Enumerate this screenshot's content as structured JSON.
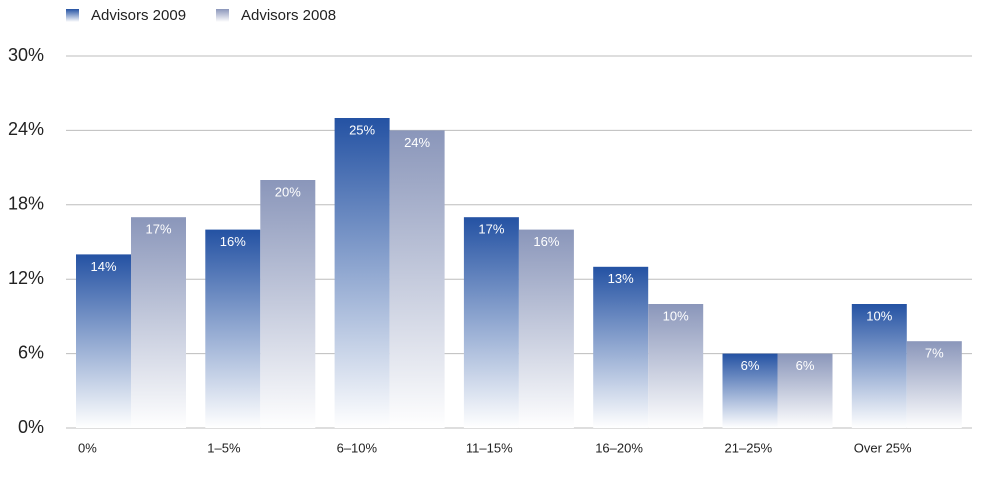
{
  "chart_data": {
    "type": "bar",
    "categories": [
      "0%",
      "1–5%",
      "6–10%",
      "11–15%",
      "16–20%",
      "21–25%",
      "Over 25%"
    ],
    "series": [
      {
        "name": "Advisors 2009",
        "color": "#2452a3",
        "values": [
          14,
          16,
          25,
          17,
          13,
          6,
          10
        ],
        "value_labels": [
          "14%",
          "16%",
          "25%",
          "17%",
          "13%",
          "6%",
          "10%"
        ]
      },
      {
        "name": "Advisors 2008",
        "color": "#8a96ba",
        "values": [
          17,
          20,
          24,
          16,
          10,
          6,
          7
        ],
        "value_labels": [
          "17%",
          "20%",
          "24%",
          "16%",
          "10%",
          "6%",
          "7%"
        ]
      }
    ],
    "ylim": [
      0,
      30
    ],
    "yticks": [
      {
        "value": 0,
        "label": "0%"
      },
      {
        "value": 6,
        "label": "6%"
      },
      {
        "value": 12,
        "label": "12%"
      },
      {
        "value": 18,
        "label": "18%"
      },
      {
        "value": 24,
        "label": "24%"
      },
      {
        "value": 30,
        "label": "30%"
      }
    ],
    "grid": true,
    "legend": "top-left"
  }
}
